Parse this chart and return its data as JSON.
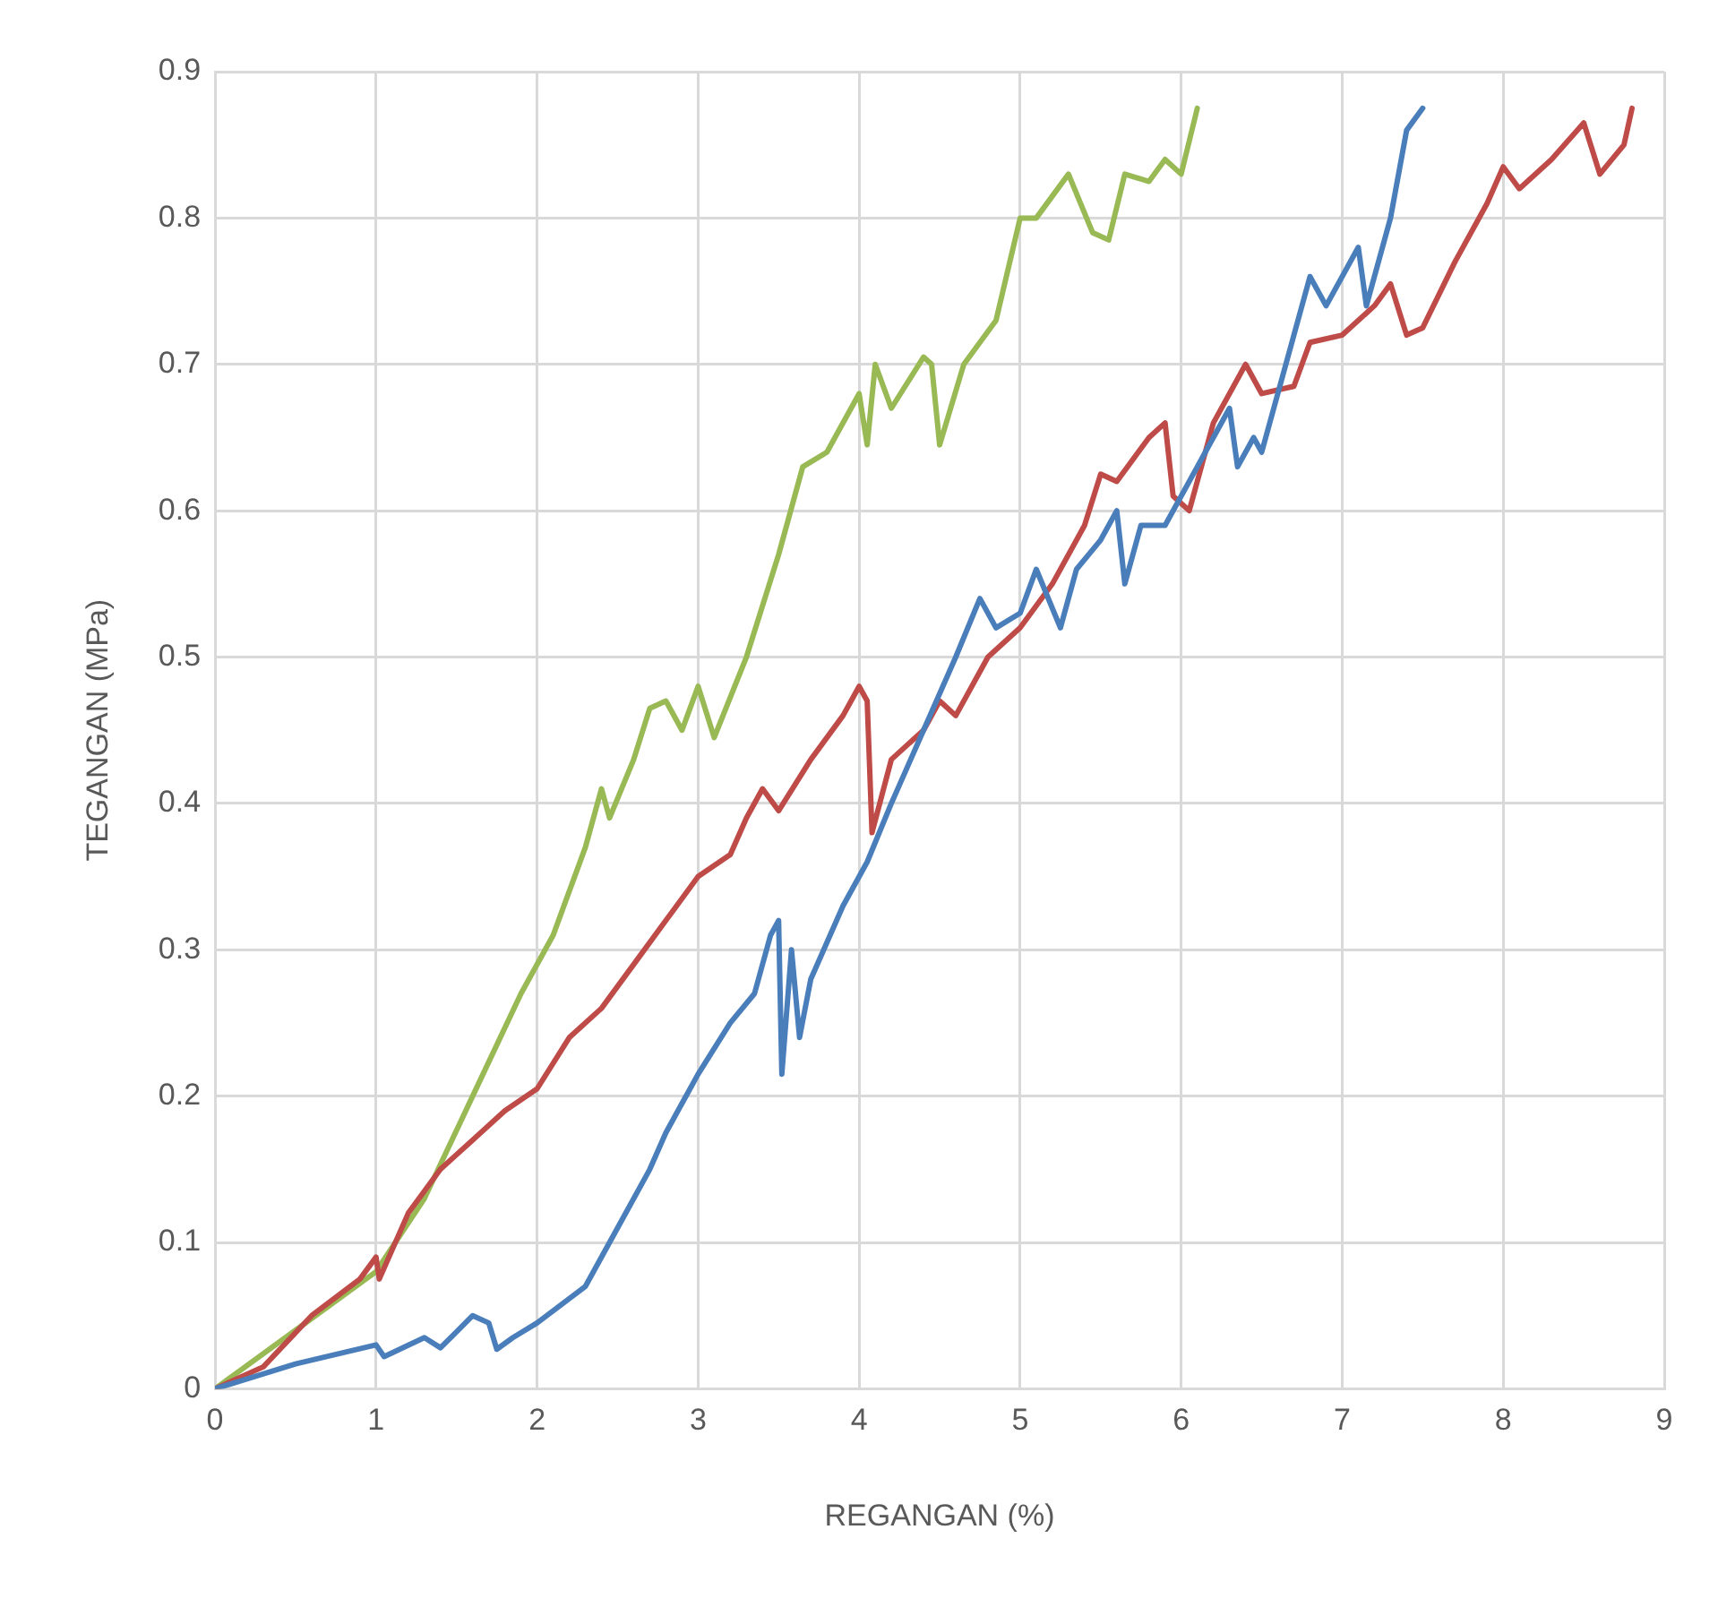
{
  "chart_data": {
    "type": "line",
    "xlabel": "REGANGAN (%)",
    "ylabel": "TEGANGAN (MPa)",
    "xlim": [
      0,
      9
    ],
    "xticks": [
      0,
      1,
      2,
      3,
      4,
      5,
      6,
      7,
      8,
      9
    ],
    "ylim": [
      0,
      0.9
    ],
    "yticks": [
      0,
      0.1,
      0.2,
      0.3,
      0.4,
      0.5,
      0.6,
      0.7,
      0.8,
      0.9
    ],
    "grid": true,
    "legend": false,
    "marker": "none",
    "line_style": "solid",
    "series": [
      {
        "color": "#4a7ebb",
        "x": [
          0,
          0.5,
          1,
          1.05,
          1.3,
          1.4,
          1.6,
          1.7,
          1.75,
          1.85,
          2,
          2.3,
          2.5,
          2.7,
          2.8,
          3,
          3.2,
          3.35,
          3.45,
          3.5,
          3.52,
          3.58,
          3.63,
          3.7,
          3.9,
          4.05,
          4.2,
          4.4,
          4.6,
          4.75,
          4.85,
          5,
          5.1,
          5.25,
          5.35,
          5.5,
          5.6,
          5.65,
          5.75,
          5.9,
          6.1,
          6.3,
          6.35,
          6.45,
          6.5,
          6.65,
          6.8,
          6.9,
          7.1,
          7.15,
          7.3,
          7.4,
          7.5
        ],
        "values": [
          0,
          0.017,
          0.03,
          0.022,
          0.035,
          0.028,
          0.05,
          0.045,
          0.027,
          0.035,
          0.045,
          0.07,
          0.11,
          0.15,
          0.175,
          0.215,
          0.25,
          0.27,
          0.31,
          0.32,
          0.215,
          0.3,
          0.24,
          0.28,
          0.33,
          0.36,
          0.4,
          0.45,
          0.5,
          0.54,
          0.52,
          0.53,
          0.56,
          0.52,
          0.56,
          0.58,
          0.6,
          0.55,
          0.59,
          0.59,
          0.63,
          0.67,
          0.63,
          0.65,
          0.64,
          0.7,
          0.76,
          0.74,
          0.78,
          0.74,
          0.8,
          0.86,
          0.875
        ]
      },
      {
        "color": "#be4b48",
        "x": [
          0,
          0.3,
          0.6,
          0.9,
          1,
          1.02,
          1.2,
          1.4,
          1.6,
          1.8,
          2,
          2.2,
          2.4,
          2.6,
          2.8,
          3,
          3.2,
          3.3,
          3.4,
          3.5,
          3.7,
          3.9,
          4,
          4.05,
          4.08,
          4.2,
          4.4,
          4.5,
          4.6,
          4.8,
          5,
          5.2,
          5.4,
          5.5,
          5.6,
          5.8,
          5.9,
          5.95,
          6.05,
          6.2,
          6.4,
          6.5,
          6.7,
          6.8,
          7,
          7.2,
          7.3,
          7.4,
          7.5,
          7.7,
          7.9,
          8,
          8.1,
          8.3,
          8.5,
          8.6,
          8.75,
          8.8
        ],
        "values": [
          0,
          0.015,
          0.05,
          0.075,
          0.09,
          0.075,
          0.12,
          0.15,
          0.17,
          0.19,
          0.205,
          0.24,
          0.26,
          0.29,
          0.32,
          0.35,
          0.365,
          0.39,
          0.41,
          0.395,
          0.43,
          0.46,
          0.48,
          0.47,
          0.38,
          0.43,
          0.45,
          0.47,
          0.46,
          0.5,
          0.52,
          0.55,
          0.59,
          0.625,
          0.62,
          0.65,
          0.66,
          0.61,
          0.6,
          0.66,
          0.7,
          0.68,
          0.685,
          0.715,
          0.72,
          0.74,
          0.755,
          0.72,
          0.725,
          0.77,
          0.81,
          0.835,
          0.82,
          0.84,
          0.865,
          0.83,
          0.85,
          0.875
        ]
      },
      {
        "color": "#98b954",
        "x": [
          0,
          0.5,
          1,
          1.3,
          1.6,
          1.9,
          2.1,
          2.3,
          2.4,
          2.45,
          2.6,
          2.7,
          2.8,
          2.9,
          3,
          3.1,
          3.3,
          3.5,
          3.65,
          3.8,
          3.95,
          4,
          4.05,
          4.1,
          4.2,
          4.4,
          4.45,
          4.5,
          4.65,
          4.85,
          5,
          5.1,
          5.3,
          5.45,
          5.55,
          5.65,
          5.8,
          5.9,
          6,
          6.1
        ],
        "values": [
          0,
          0.04,
          0.08,
          0.13,
          0.2,
          0.27,
          0.31,
          0.37,
          0.41,
          0.39,
          0.43,
          0.465,
          0.47,
          0.45,
          0.48,
          0.445,
          0.5,
          0.57,
          0.63,
          0.64,
          0.67,
          0.68,
          0.645,
          0.7,
          0.67,
          0.705,
          0.7,
          0.645,
          0.7,
          0.73,
          0.8,
          0.8,
          0.83,
          0.79,
          0.785,
          0.83,
          0.825,
          0.84,
          0.83,
          0.875
        ]
      }
    ]
  }
}
